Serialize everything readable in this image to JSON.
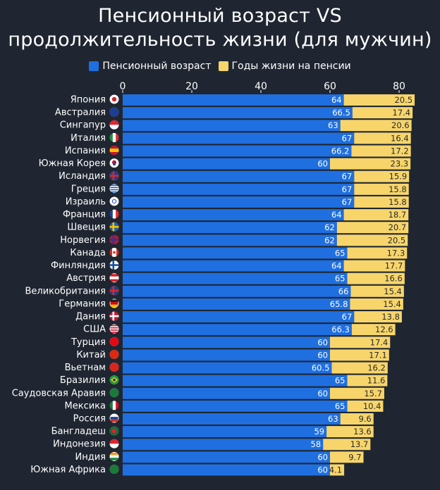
{
  "chart_data": {
    "type": "bar",
    "stacked": true,
    "orientation": "horizontal",
    "title_line1": "Пенсионный возраст VS",
    "title_line2": "продолжительность жизни (для мужчин)",
    "xlim": [
      0,
      85
    ],
    "xticks": [
      "0",
      "20",
      "40",
      "60",
      "80"
    ],
    "xtick_values": [
      0,
      20,
      40,
      60,
      80
    ],
    "colors": {
      "background": "#1f2631",
      "retirement": "#1f6fe0",
      "years": "#f7d56b",
      "axis": "#2a3240"
    },
    "categories": [
      "Япония",
      "Австралия",
      "Сингапур",
      "Италия",
      "Испания",
      "Южная Корея",
      "Исландия",
      "Греция",
      "Израиль",
      "Франция",
      "Швеция",
      "Норвегия",
      "Канада",
      "Финляндия",
      "Австрия",
      "Великобритания",
      "Германия",
      "Дания",
      "США",
      "Турция",
      "Китай",
      "Вьетнам",
      "Бразилия",
      "Саудовская Аравия",
      "Мексика",
      "Россия",
      "Бангладеш",
      "Индонезия",
      "Индия",
      "Южная Африка"
    ],
    "series": [
      {
        "name": "Пенсионный возраст",
        "values": [
          64,
          66.5,
          63,
          67,
          66.2,
          60,
          67,
          67,
          67,
          64,
          62,
          62,
          65,
          64,
          65,
          66,
          65.8,
          67,
          66.3,
          60,
          60,
          60.5,
          65,
          60,
          65,
          63,
          59,
          58,
          60,
          60
        ]
      },
      {
        "name": "Годы жизни на пенсии",
        "values": [
          20.5,
          17.4,
          20.6,
          16.4,
          17.2,
          23.3,
          15.9,
          15.8,
          15.8,
          18.7,
          20.7,
          20.5,
          17.3,
          17.7,
          16.6,
          15.4,
          15.4,
          13.8,
          12.6,
          17.4,
          17.1,
          16.2,
          11.6,
          15.7,
          10.4,
          9.6,
          13.6,
          13.7,
          9.7,
          4.1
        ]
      }
    ],
    "flags": [
      "japan-flag-icon",
      "australia-flag-icon",
      "singapore-flag-icon",
      "italy-flag-icon",
      "spain-flag-icon",
      "south-korea-flag-icon",
      "iceland-flag-icon",
      "greece-flag-icon",
      "israel-flag-icon",
      "france-flag-icon",
      "sweden-flag-icon",
      "norway-flag-icon",
      "canada-flag-icon",
      "finland-flag-icon",
      "austria-flag-icon",
      "uk-flag-icon",
      "germany-flag-icon",
      "denmark-flag-icon",
      "usa-flag-icon",
      "turkey-flag-icon",
      "china-flag-icon",
      "vietnam-flag-icon",
      "brazil-flag-icon",
      "saudi-arabia-flag-icon",
      "mexico-flag-icon",
      "russia-flag-icon",
      "bangladesh-flag-icon",
      "indonesia-flag-icon",
      "india-flag-icon",
      "south-africa-flag-icon"
    ]
  }
}
